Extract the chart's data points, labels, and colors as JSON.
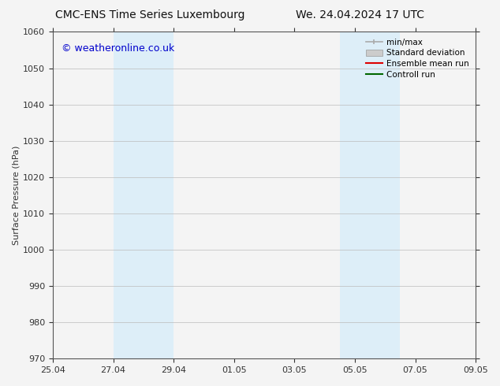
{
  "title_left": "CMC-ENS Time Series Luxembourg",
  "title_right": "We. 24.04.2024 17 UTC",
  "ylabel": "Surface Pressure (hPa)",
  "ylim": [
    970,
    1060
  ],
  "yticks": [
    970,
    980,
    990,
    1000,
    1010,
    1020,
    1030,
    1040,
    1050,
    1060
  ],
  "xtick_labels": [
    "25.04",
    "27.04",
    "29.04",
    "01.05",
    "03.05",
    "05.05",
    "07.05",
    "09.05"
  ],
  "xtick_positions": [
    0,
    2,
    4,
    6,
    8,
    10,
    12,
    14
  ],
  "shaded_regions": [
    {
      "x_start": 2,
      "x_end": 4,
      "color": "#ddeef8",
      "alpha": 1.0
    },
    {
      "x_start": 9.5,
      "x_end": 11.5,
      "color": "#ddeef8",
      "alpha": 1.0
    }
  ],
  "watermark_text": "© weatheronline.co.uk",
  "watermark_color": "#0000cc",
  "watermark_fontsize": 9,
  "background_color": "#f4f4f4",
  "plot_bg_color": "#f4f4f4",
  "grid_color": "#bbbbbb",
  "spine_color": "#555555",
  "tick_color": "#555555",
  "title_fontsize": 10,
  "ylabel_fontsize": 8,
  "xlabel_fontsize": 8,
  "legend_fontsize": 7.5
}
